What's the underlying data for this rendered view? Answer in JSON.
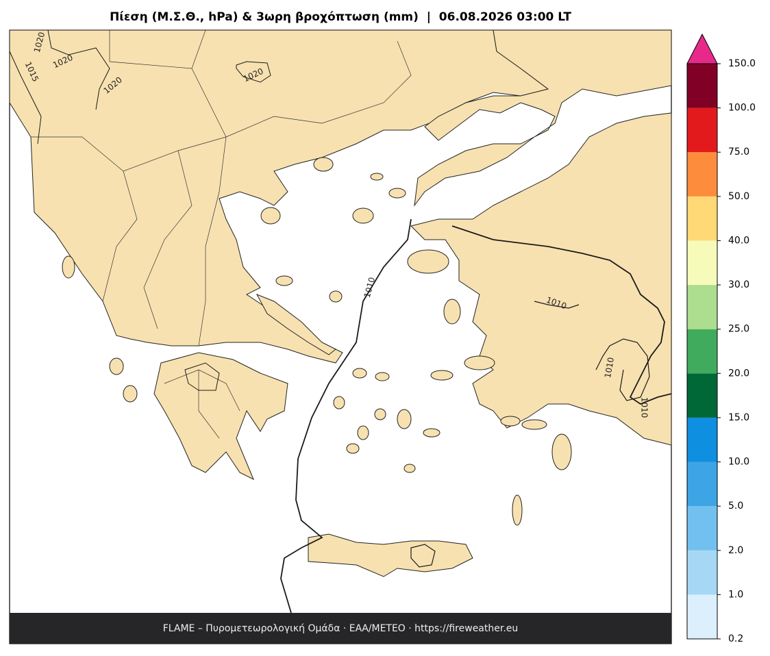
{
  "title": "Πίεση (Μ.Σ.Θ., hPa) & 3ωρη βροχόπτωση (mm)  |  06.08.2026 03:00 LT",
  "footer": "FLAME – Πυρομετεωρολογική Ομάδα · ΕΑΑ/METEO · https://fireweather.eu",
  "contour_labels": [
    1020,
    1015,
    1020,
    1020,
    1020,
    1010,
    1010,
    1010,
    1010
  ],
  "colorbar": {
    "ticks": [
      {
        "value": 0.2,
        "label": "0.2"
      },
      {
        "value": 1,
        "label": "1.0"
      },
      {
        "value": 2,
        "label": "2.0"
      },
      {
        "value": 5,
        "label": "5.0"
      },
      {
        "value": 10,
        "label": "10.0"
      },
      {
        "value": 15,
        "label": "15.0"
      },
      {
        "value": 20,
        "label": "20.0"
      },
      {
        "value": 25,
        "label": "25.0"
      },
      {
        "value": 30,
        "label": "30.0"
      },
      {
        "value": 40,
        "label": "40.0"
      },
      {
        "value": 50,
        "label": "50.0"
      },
      {
        "value": 75,
        "label": "75.0"
      },
      {
        "value": 100,
        "label": "100.0"
      },
      {
        "value": 150,
        "label": "150.0"
      }
    ],
    "colors": [
      "#dbeffd",
      "#a6d8f5",
      "#72c0ef",
      "#3da5e5",
      "#0e8fe0",
      "#006837",
      "#41ab5d",
      "#addd8e",
      "#f7fbb9",
      "#fed976",
      "#fd8d3c",
      "#e31a1c",
      "#800026"
    ],
    "extend_color": "#e7298a"
  }
}
